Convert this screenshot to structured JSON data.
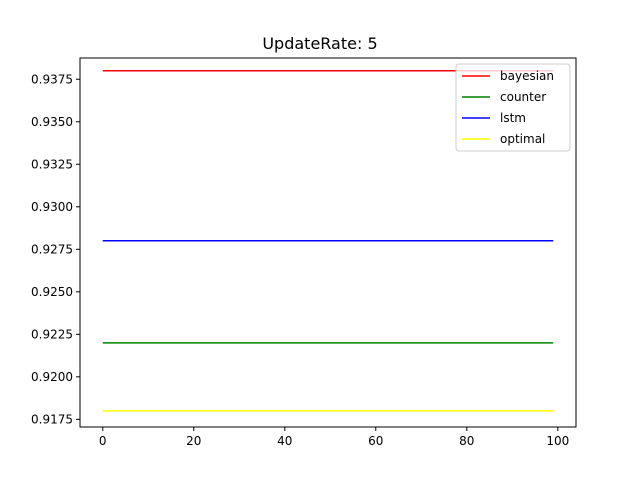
{
  "chart_data": {
    "type": "line",
    "title": "UpdateRate: 5",
    "xlabel": "",
    "ylabel": "",
    "x": [
      0,
      99
    ],
    "xlim": [
      -5,
      104
    ],
    "ylim": [
      0.91705,
      0.93875
    ],
    "xticks": [
      0,
      20,
      40,
      60,
      80,
      100
    ],
    "yticks": [
      0.9175,
      0.92,
      0.9225,
      0.925,
      0.9275,
      0.93,
      0.9325,
      0.935,
      0.9375
    ],
    "ytick_labels": [
      "0.9175",
      "0.9200",
      "0.9225",
      "0.9250",
      "0.9275",
      "0.9300",
      "0.9325",
      "0.9350",
      "0.9375"
    ],
    "grid": false,
    "legend_position": "top-right",
    "series": [
      {
        "name": "bayesian",
        "color": "#ff0000",
        "values": [
          0.938,
          0.938
        ]
      },
      {
        "name": "counter",
        "color": "#008000",
        "values": [
          0.922,
          0.922
        ]
      },
      {
        "name": "lstm",
        "color": "#0000ff",
        "values": [
          0.928,
          0.928
        ]
      },
      {
        "name": "optimal",
        "color": "#ffff00",
        "values": [
          0.918,
          0.918
        ]
      }
    ]
  }
}
